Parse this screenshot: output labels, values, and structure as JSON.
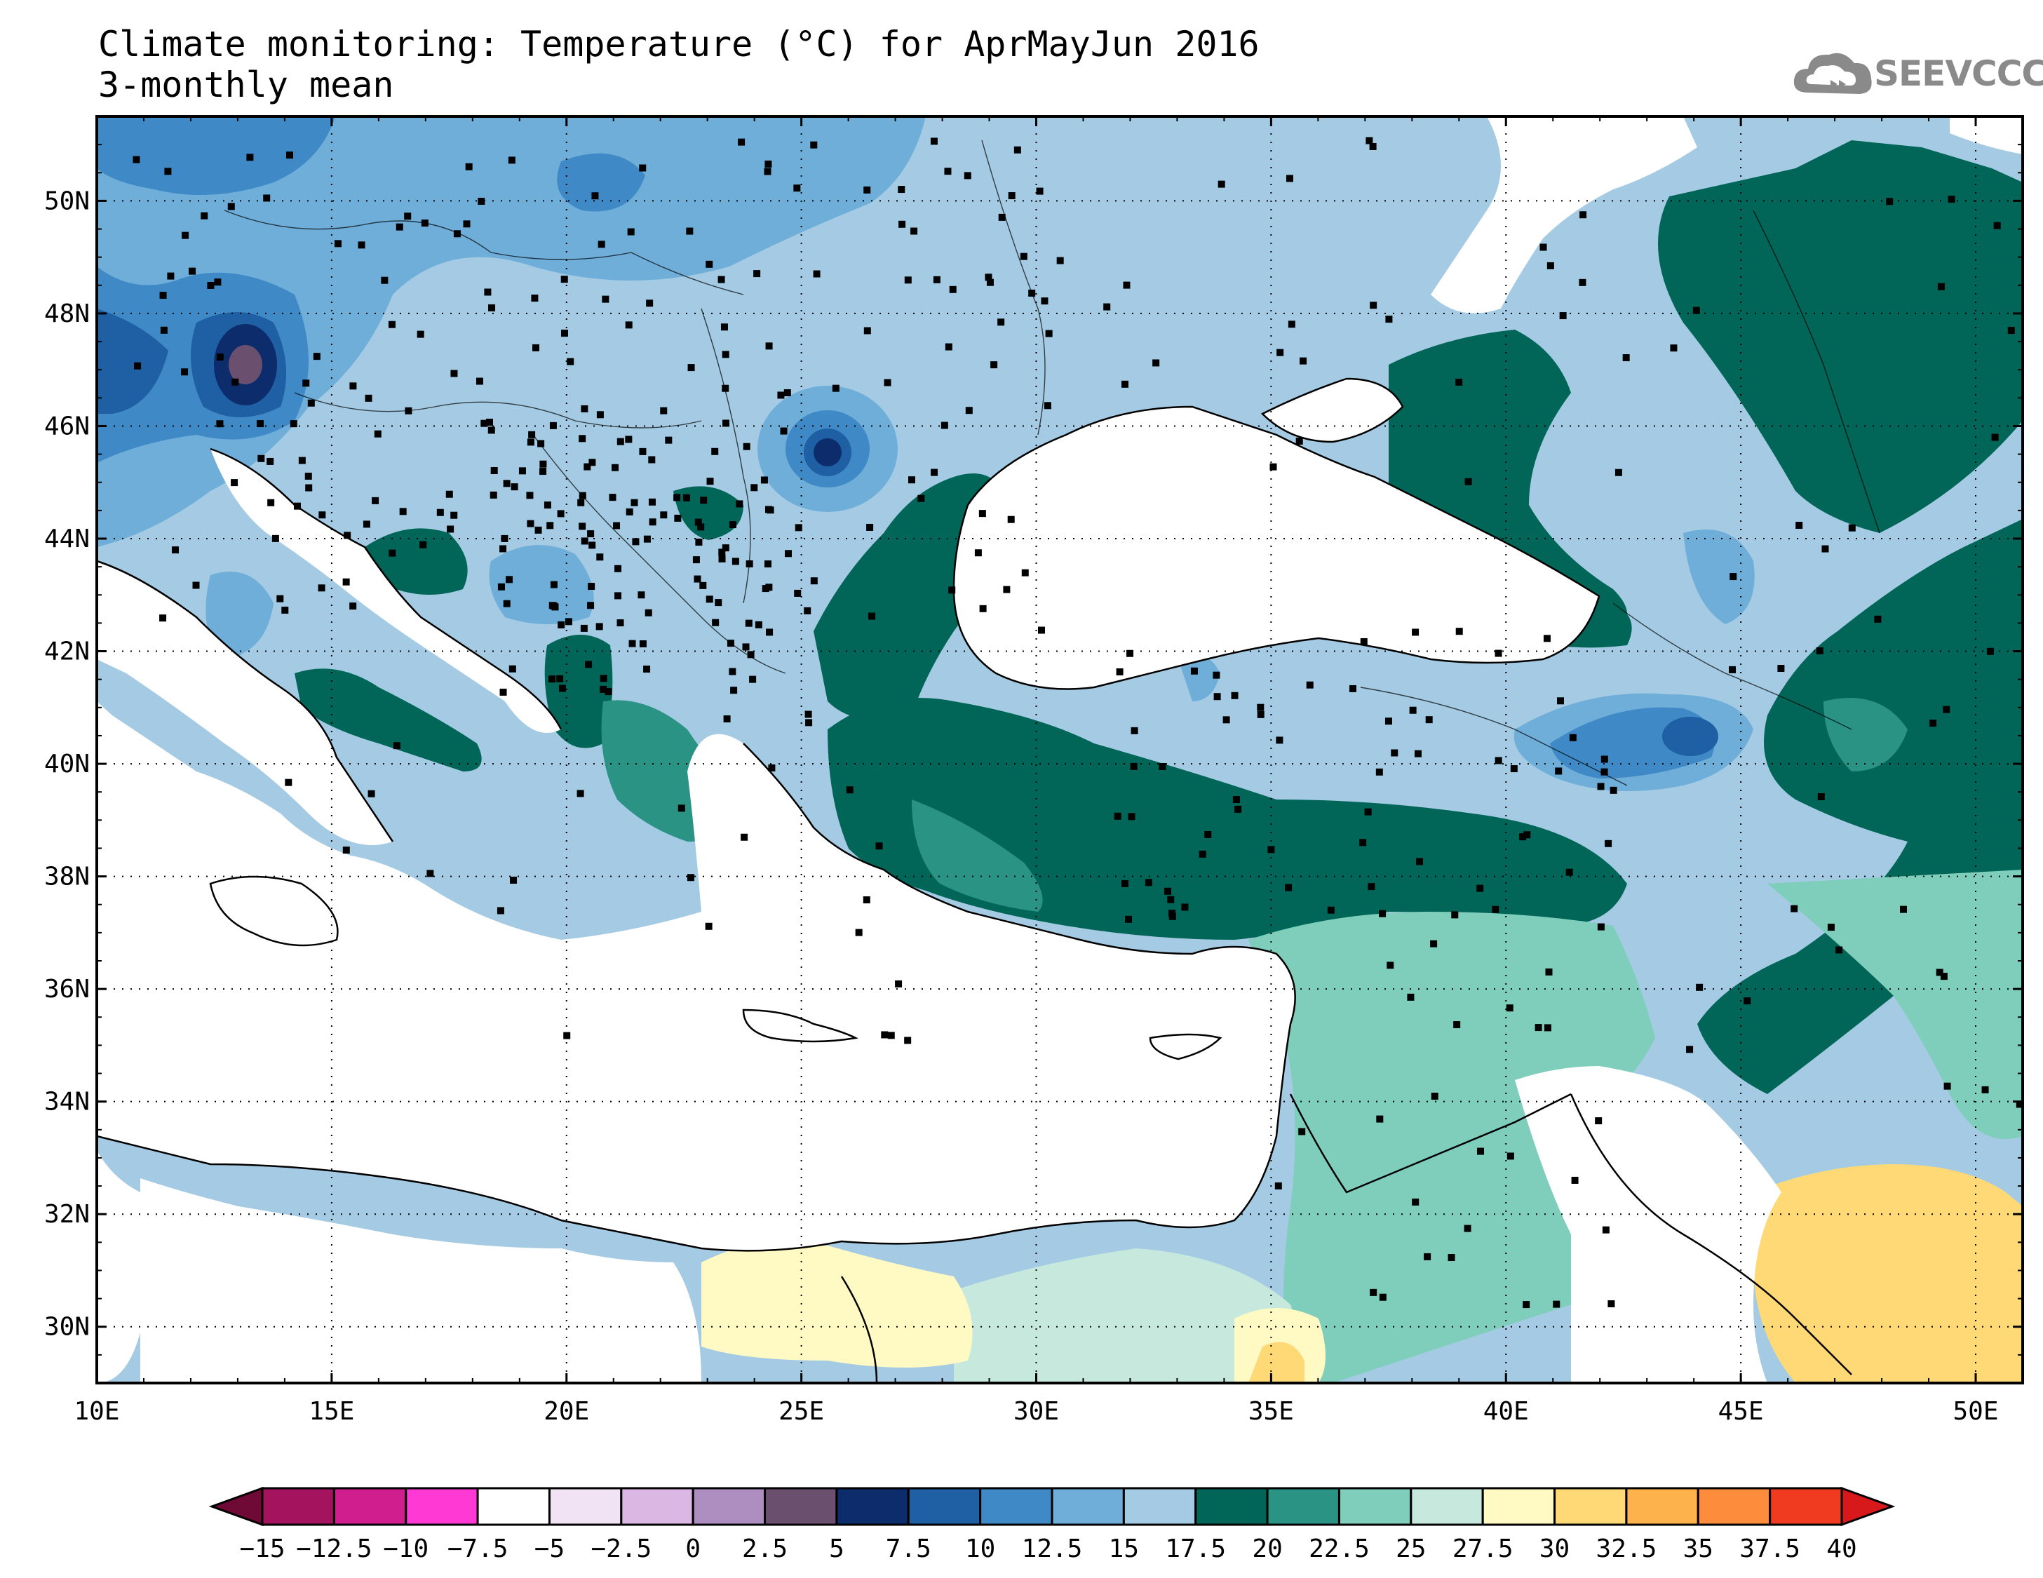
{
  "header": {
    "title_line1": "Climate monitoring: Temperature (°C) for AprMayJun 2016",
    "title_line2": "3-monthly mean"
  },
  "logo": {
    "text": "SEEVCCC",
    "icon": "cloud-icon"
  },
  "map": {
    "projection": "lat-lon",
    "lon_range": [
      10,
      51
    ],
    "lat_range": [
      29,
      51.5
    ],
    "lon_ticks": [
      "10E",
      "15E",
      "20E",
      "25E",
      "30E",
      "35E",
      "40E",
      "45E",
      "50E"
    ],
    "lat_ticks": [
      "30N",
      "32N",
      "34N",
      "36N",
      "38N",
      "40N",
      "42N",
      "44N",
      "46N",
      "48N",
      "50N"
    ],
    "gridlines": "dotted",
    "station_markers": "black-squares"
  },
  "colorbar": {
    "labels": [
      "-15",
      "-12.5",
      "-10",
      "-7.5",
      "-5",
      "-2.5",
      "0",
      "2.5",
      "5",
      "7.5",
      "10",
      "12.5",
      "15",
      "17.5",
      "20",
      "22.5",
      "25",
      "27.5",
      "30",
      "32.5",
      "35",
      "37.5",
      "40"
    ],
    "colors": [
      "#7a0c3e",
      "#a3135e",
      "#d01e8f",
      "#ff3ad4",
      "#ffffff",
      "#f1e2f4",
      "#dab8e3",
      "#ae8ec0",
      "#6b4f6e",
      "#0c2c6b",
      "#1f5fa3",
      "#3f8ac6",
      "#6eaed9",
      "#a4cbe3",
      "#016657",
      "#2a9383",
      "#7fcdbb",
      "#c7e9dd",
      "#fff9c4",
      "#fed976",
      "#feb24c",
      "#fd8d3c",
      "#f03b20",
      "#d7191c"
    ],
    "left_arrow_color": "#6e0a35",
    "right_arrow_color": "#d7191c"
  }
}
